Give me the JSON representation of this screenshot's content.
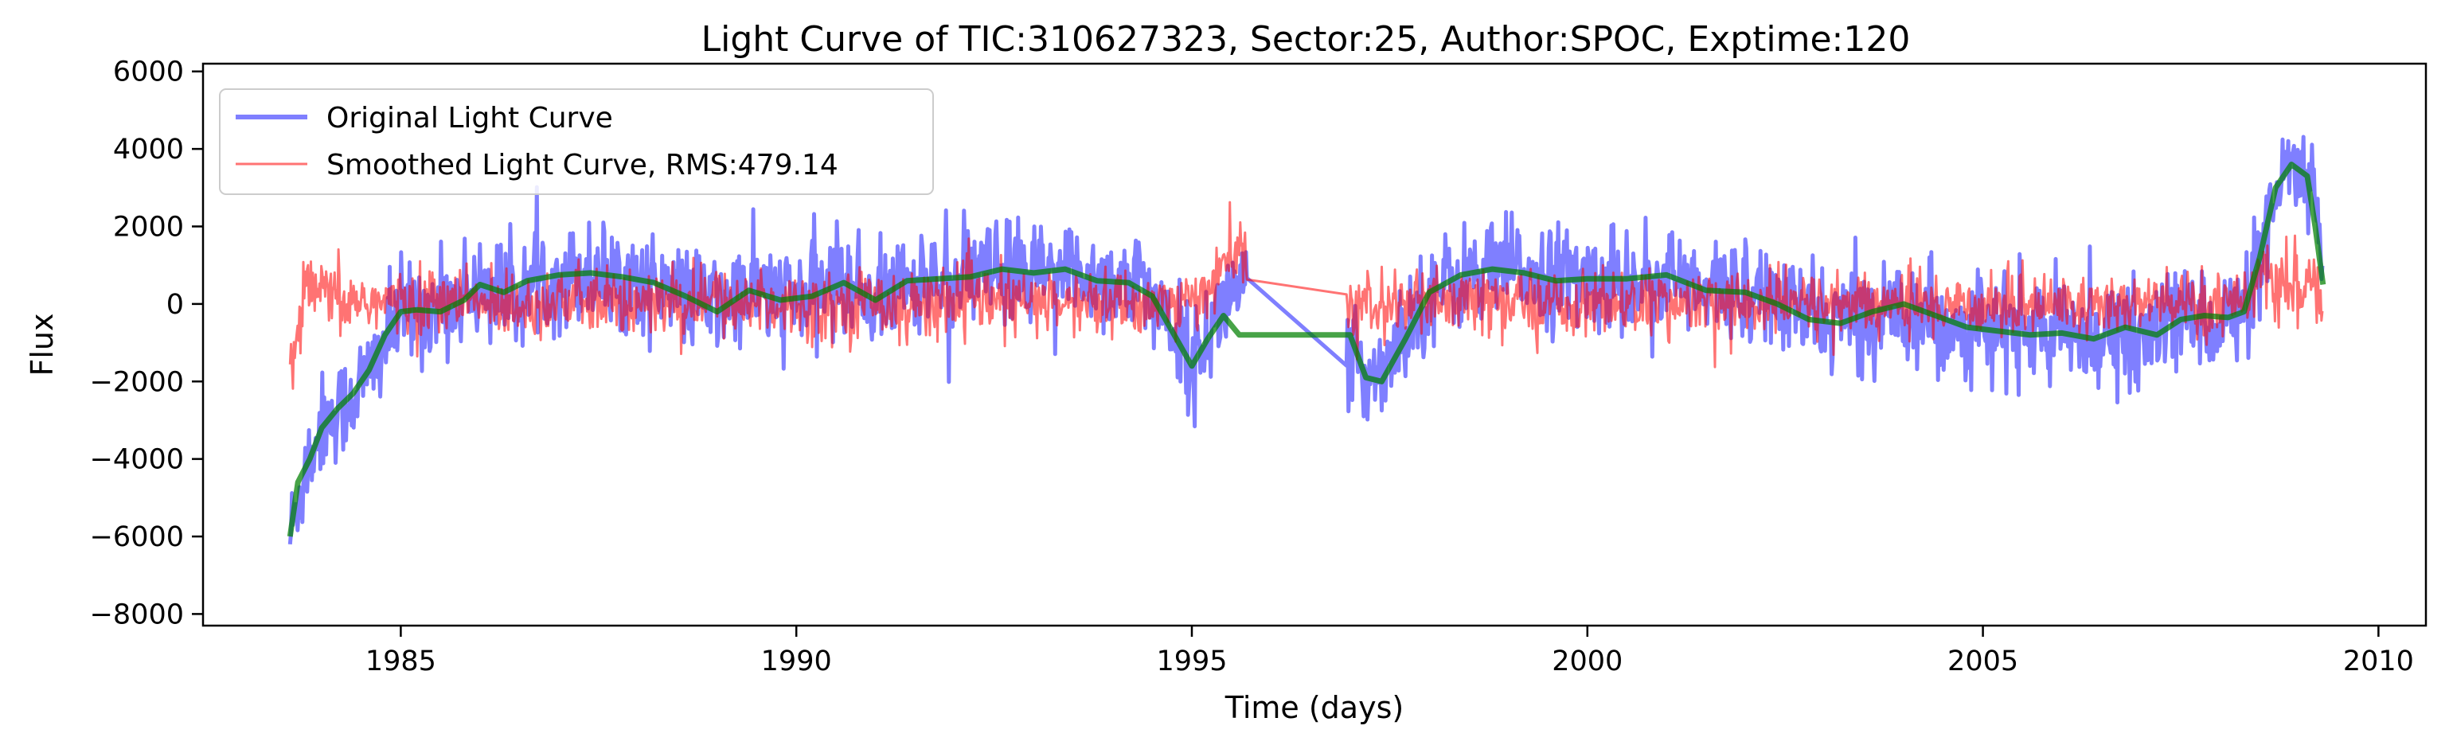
{
  "chart_data": {
    "type": "line",
    "title": "Light Curve of TIC:310627323, Sector:25, Author:SPOC, Exptime:120",
    "xlabel": "Time (days)",
    "ylabel": "Flux",
    "xlim": [
      1982.5,
      2010.6
    ],
    "ylim": [
      -8300,
      6200
    ],
    "xticks": [
      1985,
      1990,
      1995,
      2000,
      2005,
      2010
    ],
    "yticks": [
      6000,
      4000,
      2000,
      0,
      -2000,
      -4000,
      -6000,
      -8000
    ],
    "xtick_labels": [
      "1985",
      "1990",
      "1995",
      "2000",
      "2005",
      "2010"
    ],
    "ytick_labels": [
      "6000",
      "4000",
      "2000",
      "0",
      "−2000",
      "−4000",
      "−6000",
      "−8000"
    ],
    "grid": false,
    "legend_position": "upper-left",
    "colors": {
      "original": "#0000ff",
      "smoothed": "#ff0000",
      "trend": "#008000"
    },
    "series": [
      {
        "name": "Original Light Curve",
        "style": "noisy",
        "x": [
          1983.6,
          1983.8,
          1984.0,
          1984.3,
          1984.6,
          1985.0,
          1985.3,
          1985.6,
          1986.0,
          1986.4,
          1986.8,
          1987.2,
          1987.6,
          1988.0,
          1988.5,
          1989.0,
          1989.5,
          1990.0,
          1990.5,
          1991.0,
          1991.5,
          1992.0,
          1992.5,
          1993.0,
          1993.5,
          1994.0,
          1994.4,
          1994.7,
          1995.0,
          1995.3,
          1995.6,
          1997.0,
          1997.3,
          1997.6,
          1998.0,
          1998.5,
          1999.0,
          1999.5,
          2000.0,
          2000.5,
          2001.0,
          2001.5,
          2002.0,
          2002.5,
          2003.0,
          2003.5,
          2004.0,
          2004.5,
          2005.0,
          2005.5,
          2006.0,
          2006.5,
          2007.0,
          2007.5,
          2008.0,
          2008.3,
          2008.6,
          2008.8,
          2009.0,
          2009.2,
          2009.3
        ],
        "y": [
          -6000,
          -4200,
          -3100,
          -2600,
          -1800,
          -200,
          -150,
          0,
          550,
          100,
          650,
          750,
          800,
          600,
          250,
          -50,
          350,
          100,
          600,
          150,
          600,
          600,
          850,
          750,
          850,
          550,
          450,
          -300,
          -1600,
          -400,
          600,
          -1500,
          -1900,
          -900,
          300,
          750,
          900,
          750,
          600,
          650,
          700,
          250,
          500,
          -100,
          -400,
          -400,
          0,
          -500,
          -700,
          -600,
          -800,
          -700,
          -900,
          -300,
          -400,
          -300,
          1500,
          3400,
          3700,
          2500,
          600
        ]
      },
      {
        "name": "Smoothed Light Curve, RMS:479.14",
        "style": "noisy",
        "x": [
          1983.6,
          1983.8,
          1984.0,
          1984.3,
          1984.6,
          1985.0,
          1985.5,
          1986.0,
          1986.5,
          1987.0,
          1987.5,
          1988.0,
          1988.5,
          1989.0,
          1989.5,
          1990.0,
          1990.5,
          1991.0,
          1991.5,
          1992.0,
          1992.5,
          1993.0,
          1993.5,
          1994.0,
          1994.5,
          1995.0,
          1995.6,
          1997.0,
          1997.5,
          1998.0,
          1998.5,
          1999.0,
          1999.5,
          2000.0,
          2000.5,
          2001.0,
          2001.5,
          2002.0,
          2002.5,
          2003.0,
          2003.5,
          2004.0,
          2004.5,
          2005.0,
          2005.5,
          2006.0,
          2006.5,
          2007.0,
          2007.5,
          2008.0,
          2008.5,
          2009.0,
          2009.3
        ],
        "y": [
          -1700,
          300,
          300,
          0,
          100,
          0,
          100,
          0,
          0,
          100,
          0,
          0,
          0,
          100,
          0,
          0,
          0,
          100,
          0,
          100,
          50,
          0,
          50,
          0,
          0,
          0,
          1400,
          -200,
          0,
          0,
          0,
          100,
          0,
          0,
          50,
          0,
          0,
          0,
          0,
          0,
          0,
          0,
          0,
          0,
          0,
          0,
          0,
          0,
          0,
          0,
          600,
          400,
          300
        ]
      }
    ],
    "trend": {
      "x": [
        1983.6,
        1983.7,
        1983.85,
        1984.0,
        1984.2,
        1984.4,
        1984.6,
        1984.8,
        1985.0,
        1985.2,
        1985.5,
        1985.8,
        1986.0,
        1986.3,
        1986.6,
        1987.0,
        1987.4,
        1987.8,
        1988.2,
        1988.6,
        1989.0,
        1989.4,
        1989.8,
        1990.2,
        1990.6,
        1991.0,
        1991.4,
        1991.8,
        1992.2,
        1992.6,
        1993.0,
        1993.4,
        1993.8,
        1994.2,
        1994.5,
        1994.75,
        1995.0,
        1995.2,
        1995.4,
        1995.6,
        1997.0,
        1997.2,
        1997.4,
        1997.7,
        1998.0,
        1998.4,
        1998.8,
        1999.2,
        1999.6,
        2000.0,
        2000.5,
        2001.0,
        2001.5,
        2002.0,
        2002.4,
        2002.8,
        2003.2,
        2003.6,
        2004.0,
        2004.4,
        2004.8,
        2005.2,
        2005.6,
        2006.0,
        2006.4,
        2006.8,
        2007.2,
        2007.5,
        2007.8,
        2008.1,
        2008.3,
        2008.5,
        2008.7,
        2008.9,
        2009.1,
        2009.2,
        2009.3
      ],
      "y": [
        -6000,
        -4600,
        -4000,
        -3200,
        -2700,
        -2300,
        -1700,
        -800,
        -200,
        -150,
        -200,
        100,
        500,
        300,
        600,
        750,
        800,
        700,
        550,
        200,
        -200,
        350,
        100,
        200,
        550,
        100,
        600,
        650,
        700,
        900,
        800,
        900,
        600,
        550,
        200,
        -700,
        -1600,
        -900,
        -300,
        -800,
        -800,
        -1900,
        -2000,
        -900,
        300,
        750,
        900,
        800,
        600,
        650,
        650,
        750,
        350,
        300,
        0,
        -400,
        -500,
        -200,
        0,
        -300,
        -600,
        -700,
        -800,
        -750,
        -900,
        -600,
        -800,
        -400,
        -300,
        -350,
        -200,
        1200,
        3000,
        3600,
        3300,
        2000,
        500
      ]
    }
  }
}
